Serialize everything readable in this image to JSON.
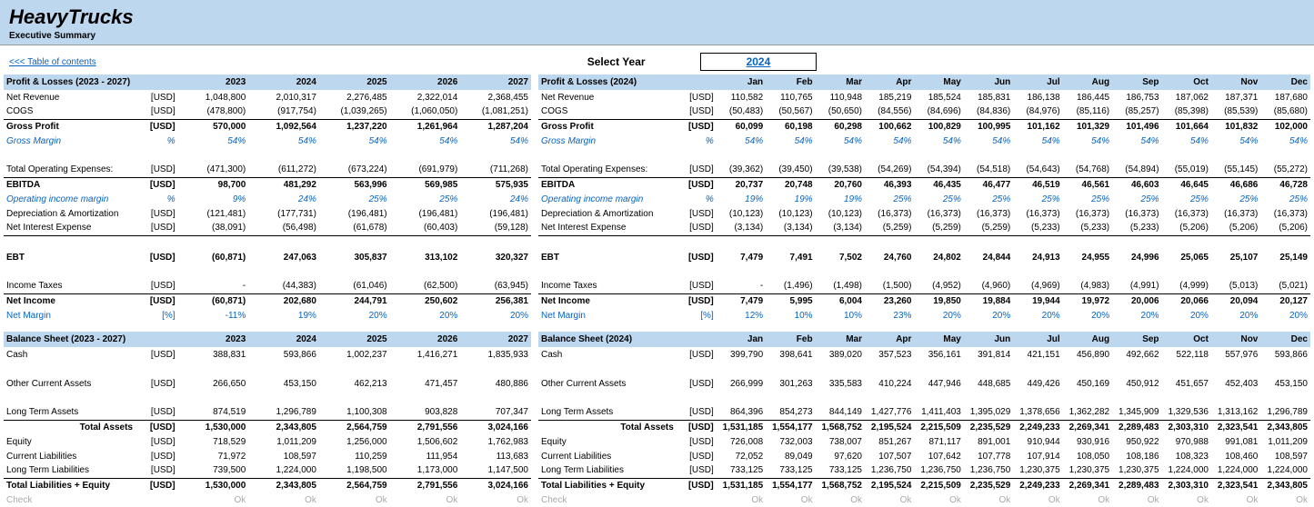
{
  "header": {
    "company": "HeavyTrucks",
    "subtitle": "Executive Summary"
  },
  "nav": {
    "toc": "<<< Table of contents",
    "select_year": "Select Year",
    "year": "2024"
  },
  "left": {
    "pl": {
      "title": "Profit & Losses (2023 - 2027)",
      "cols": [
        "2023",
        "2024",
        "2025",
        "2026",
        "2027"
      ],
      "rows": [
        {
          "l": "Net Revenue",
          "u": "[USD]",
          "v": [
            "1,048,800",
            "2,010,317",
            "2,276,485",
            "2,322,014",
            "2,368,455"
          ]
        },
        {
          "l": "COGS",
          "u": "[USD]",
          "v": [
            "(478,800)",
            "(917,754)",
            "(1,039,265)",
            "(1,060,050)",
            "(1,081,251)"
          ],
          "underline": true
        },
        {
          "l": "Gross Profit",
          "u": "[USD]",
          "v": [
            "570,000",
            "1,092,564",
            "1,237,220",
            "1,261,964",
            "1,287,204"
          ],
          "bold": true
        },
        {
          "l": "Gross Margin",
          "u": "%",
          "v": [
            "54%",
            "54%",
            "54%",
            "54%",
            "54%"
          ],
          "blue": true,
          "italic": true
        },
        {
          "l": "",
          "u": "",
          "v": [
            "",
            "",
            "",
            "",
            ""
          ]
        },
        {
          "l": "Total Operating Expenses:",
          "u": "[USD]",
          "v": [
            "(471,300)",
            "(611,272)",
            "(673,224)",
            "(691,979)",
            "(711,268)"
          ],
          "underline": true
        },
        {
          "l": "EBITDA",
          "u": "[USD]",
          "v": [
            "98,700",
            "481,292",
            "563,996",
            "569,985",
            "575,935"
          ],
          "bold": true
        },
        {
          "l": "Operating income margin",
          "u": "%",
          "v": [
            "9%",
            "24%",
            "25%",
            "25%",
            "24%"
          ],
          "blue": true,
          "italic": true
        },
        {
          "l": "Depreciation & Amortization",
          "u": "[USD]",
          "v": [
            "(121,481)",
            "(177,731)",
            "(196,481)",
            "(196,481)",
            "(196,481)"
          ]
        },
        {
          "l": "Net Interest Expense",
          "u": "[USD]",
          "v": [
            "(38,091)",
            "(56,498)",
            "(61,678)",
            "(60,403)",
            "(59,128)"
          ],
          "underline": true
        },
        {
          "l": "",
          "u": "",
          "v": [
            "",
            "",
            "",
            "",
            ""
          ]
        },
        {
          "l": "EBT",
          "u": "[USD]",
          "v": [
            "(60,871)",
            "247,063",
            "305,837",
            "313,102",
            "320,327"
          ],
          "bold": true
        },
        {
          "l": "",
          "u": "",
          "v": [
            "",
            "",
            "",
            "",
            ""
          ]
        },
        {
          "l": "Income Taxes",
          "u": "[USD]",
          "v": [
            "-",
            "(44,383)",
            "(61,046)",
            "(62,500)",
            "(63,945)"
          ],
          "underline": true
        },
        {
          "l": "Net Income",
          "u": "[USD]",
          "v": [
            "(60,871)",
            "202,680",
            "244,791",
            "250,602",
            "256,381"
          ],
          "bold": true
        },
        {
          "l": "Net Margin",
          "u": "[%]",
          "v": [
            "-11%",
            "19%",
            "20%",
            "20%",
            "20%"
          ],
          "blue": true
        }
      ]
    },
    "bs": {
      "title": "Balance Sheet (2023 - 2027)",
      "cols": [
        "2023",
        "2024",
        "2025",
        "2026",
        "2027"
      ],
      "rows": [
        {
          "l": "Cash",
          "u": "[USD]",
          "v": [
            "388,831",
            "593,866",
            "1,002,237",
            "1,416,271",
            "1,835,933"
          ]
        },
        {
          "l": "",
          "u": "",
          "v": [
            "",
            "",
            "",
            "",
            ""
          ]
        },
        {
          "l": "Other Current Assets",
          "u": "[USD]",
          "v": [
            "266,650",
            "453,150",
            "462,213",
            "471,457",
            "480,886"
          ]
        },
        {
          "l": "",
          "u": "",
          "v": [
            "",
            "",
            "",
            "",
            ""
          ]
        },
        {
          "l": "Long Term Assets",
          "u": "[USD]",
          "v": [
            "874,519",
            "1,296,789",
            "1,100,308",
            "903,828",
            "707,347"
          ],
          "underline": true
        },
        {
          "l": "Total Assets",
          "u": "[USD]",
          "v": [
            "1,530,000",
            "2,343,805",
            "2,564,759",
            "2,791,556",
            "3,024,166"
          ],
          "bold": true,
          "rightlabel": true
        },
        {
          "l": "Equity",
          "u": "[USD]",
          "v": [
            "718,529",
            "1,011,209",
            "1,256,000",
            "1,506,602",
            "1,762,983"
          ]
        },
        {
          "l": "Current Liabilities",
          "u": "[USD]",
          "v": [
            "71,972",
            "108,597",
            "110,259",
            "111,954",
            "113,683"
          ]
        },
        {
          "l": "Long Term Liabilities",
          "u": "[USD]",
          "v": [
            "739,500",
            "1,224,000",
            "1,198,500",
            "1,173,000",
            "1,147,500"
          ],
          "underline": true
        },
        {
          "l": "Total Liabilities + Equity",
          "u": "[USD]",
          "v": [
            "1,530,000",
            "2,343,805",
            "2,564,759",
            "2,791,556",
            "3,024,166"
          ],
          "bold": true
        },
        {
          "l": "Check",
          "u": "",
          "v": [
            "Ok",
            "Ok",
            "Ok",
            "Ok",
            "Ok"
          ],
          "grey": true
        }
      ]
    }
  },
  "right": {
    "pl": {
      "title": "Profit & Losses (2024)",
      "cols": [
        "Jan",
        "Feb",
        "Mar",
        "Apr",
        "May",
        "Jun",
        "Jul",
        "Aug",
        "Sep",
        "Oct",
        "Nov",
        "Dec"
      ],
      "rows": [
        {
          "l": "Net Revenue",
          "u": "[USD]",
          "v": [
            "110,582",
            "110,765",
            "110,948",
            "185,219",
            "185,524",
            "185,831",
            "186,138",
            "186,445",
            "186,753",
            "187,062",
            "187,371",
            "187,680"
          ]
        },
        {
          "l": "COGS",
          "u": "[USD]",
          "v": [
            "(50,483)",
            "(50,567)",
            "(50,650)",
            "(84,556)",
            "(84,696)",
            "(84,836)",
            "(84,976)",
            "(85,116)",
            "(85,257)",
            "(85,398)",
            "(85,539)",
            "(85,680)"
          ],
          "underline": true
        },
        {
          "l": "Gross Profit",
          "u": "[USD]",
          "v": [
            "60,099",
            "60,198",
            "60,298",
            "100,662",
            "100,829",
            "100,995",
            "101,162",
            "101,329",
            "101,496",
            "101,664",
            "101,832",
            "102,000"
          ],
          "bold": true
        },
        {
          "l": "Gross Margin",
          "u": "%",
          "v": [
            "54%",
            "54%",
            "54%",
            "54%",
            "54%",
            "54%",
            "54%",
            "54%",
            "54%",
            "54%",
            "54%",
            "54%"
          ],
          "blue": true,
          "italic": true
        },
        {
          "l": "",
          "u": "",
          "v": [
            "",
            "",
            "",
            "",
            "",
            "",
            "",
            "",
            "",
            "",
            "",
            ""
          ]
        },
        {
          "l": "Total Operating Expenses:",
          "u": "[USD]",
          "v": [
            "(39,362)",
            "(39,450)",
            "(39,538)",
            "(54,269)",
            "(54,394)",
            "(54,518)",
            "(54,643)",
            "(54,768)",
            "(54,894)",
            "(55,019)",
            "(55,145)",
            "(55,272)"
          ],
          "underline": true
        },
        {
          "l": "EBITDA",
          "u": "[USD]",
          "v": [
            "20,737",
            "20,748",
            "20,760",
            "46,393",
            "46,435",
            "46,477",
            "46,519",
            "46,561",
            "46,603",
            "46,645",
            "46,686",
            "46,728"
          ],
          "bold": true
        },
        {
          "l": "Operating income margin",
          "u": "%",
          "v": [
            "19%",
            "19%",
            "19%",
            "25%",
            "25%",
            "25%",
            "25%",
            "25%",
            "25%",
            "25%",
            "25%",
            "25%"
          ],
          "blue": true,
          "italic": true
        },
        {
          "l": "Depreciation & Amortization",
          "u": "[USD]",
          "v": [
            "(10,123)",
            "(10,123)",
            "(10,123)",
            "(16,373)",
            "(16,373)",
            "(16,373)",
            "(16,373)",
            "(16,373)",
            "(16,373)",
            "(16,373)",
            "(16,373)",
            "(16,373)"
          ]
        },
        {
          "l": "Net Interest Expense",
          "u": "[USD]",
          "v": [
            "(3,134)",
            "(3,134)",
            "(3,134)",
            "(5,259)",
            "(5,259)",
            "(5,259)",
            "(5,233)",
            "(5,233)",
            "(5,233)",
            "(5,206)",
            "(5,206)",
            "(5,206)"
          ],
          "underline": true
        },
        {
          "l": "",
          "u": "",
          "v": [
            "",
            "",
            "",
            "",
            "",
            "",
            "",
            "",
            "",
            "",
            "",
            ""
          ]
        },
        {
          "l": "EBT",
          "u": "[USD]",
          "v": [
            "7,479",
            "7,491",
            "7,502",
            "24,760",
            "24,802",
            "24,844",
            "24,913",
            "24,955",
            "24,996",
            "25,065",
            "25,107",
            "25,149"
          ],
          "bold": true
        },
        {
          "l": "",
          "u": "",
          "v": [
            "",
            "",
            "",
            "",
            "",
            "",
            "",
            "",
            "",
            "",
            "",
            ""
          ]
        },
        {
          "l": "Income Taxes",
          "u": "[USD]",
          "v": [
            "-",
            "(1,496)",
            "(1,498)",
            "(1,500)",
            "(4,952)",
            "(4,960)",
            "(4,969)",
            "(4,983)",
            "(4,991)",
            "(4,999)",
            "(5,013)",
            "(5,021)"
          ],
          "underline": true
        },
        {
          "l": "Net Income",
          "u": "[USD]",
          "v": [
            "7,479",
            "5,995",
            "6,004",
            "23,260",
            "19,850",
            "19,884",
            "19,944",
            "19,972",
            "20,006",
            "20,066",
            "20,094",
            "20,127"
          ],
          "bold": true
        },
        {
          "l": "Net Margin",
          "u": "[%]",
          "v": [
            "12%",
            "10%",
            "10%",
            "23%",
            "20%",
            "20%",
            "20%",
            "20%",
            "20%",
            "20%",
            "20%",
            "20%"
          ],
          "blue": true
        }
      ]
    },
    "bs": {
      "title": "Balance Sheet (2024)",
      "cols": [
        "Jan",
        "Feb",
        "Mar",
        "Apr",
        "May",
        "Jun",
        "Jul",
        "Aug",
        "Sep",
        "Oct",
        "Nov",
        "Dec"
      ],
      "rows": [
        {
          "l": "Cash",
          "u": "[USD]",
          "v": [
            "399,790",
            "398,641",
            "389,020",
            "357,523",
            "356,161",
            "391,814",
            "421,151",
            "456,890",
            "492,662",
            "522,118",
            "557,976",
            "593,866"
          ]
        },
        {
          "l": "",
          "u": "",
          "v": [
            "",
            "",
            "",
            "",
            "",
            "",
            "",
            "",
            "",
            "",
            "",
            ""
          ]
        },
        {
          "l": "Other Current Assets",
          "u": "[USD]",
          "v": [
            "266,999",
            "301,263",
            "335,583",
            "410,224",
            "447,946",
            "448,685",
            "449,426",
            "450,169",
            "450,912",
            "451,657",
            "452,403",
            "453,150"
          ]
        },
        {
          "l": "",
          "u": "",
          "v": [
            "",
            "",
            "",
            "",
            "",
            "",
            "",
            "",
            "",
            "",
            "",
            ""
          ]
        },
        {
          "l": "Long Term Assets",
          "u": "[USD]",
          "v": [
            "864,396",
            "854,273",
            "844,149",
            "1,427,776",
            "1,411,403",
            "1,395,029",
            "1,378,656",
            "1,362,282",
            "1,345,909",
            "1,329,536",
            "1,313,162",
            "1,296,789"
          ],
          "underline": true
        },
        {
          "l": "Total Assets",
          "u": "[USD]",
          "v": [
            "1,531,185",
            "1,554,177",
            "1,568,752",
            "2,195,524",
            "2,215,509",
            "2,235,529",
            "2,249,233",
            "2,269,341",
            "2,289,483",
            "2,303,310",
            "2,323,541",
            "2,343,805"
          ],
          "bold": true,
          "rightlabel": true
        },
        {
          "l": "Equity",
          "u": "[USD]",
          "v": [
            "726,008",
            "732,003",
            "738,007",
            "851,267",
            "871,117",
            "891,001",
            "910,944",
            "930,916",
            "950,922",
            "970,988",
            "991,081",
            "1,011,209"
          ]
        },
        {
          "l": "Current Liabilities",
          "u": "[USD]",
          "v": [
            "72,052",
            "89,049",
            "97,620",
            "107,507",
            "107,642",
            "107,778",
            "107,914",
            "108,050",
            "108,186",
            "108,323",
            "108,460",
            "108,597"
          ]
        },
        {
          "l": "Long Term Liabilities",
          "u": "[USD]",
          "v": [
            "733,125",
            "733,125",
            "733,125",
            "1,236,750",
            "1,236,750",
            "1,236,750",
            "1,230,375",
            "1,230,375",
            "1,230,375",
            "1,224,000",
            "1,224,000",
            "1,224,000"
          ],
          "underline": true
        },
        {
          "l": "Total Liabilities + Equity",
          "u": "[USD]",
          "v": [
            "1,531,185",
            "1,554,177",
            "1,568,752",
            "2,195,524",
            "2,215,509",
            "2,235,529",
            "2,249,233",
            "2,269,341",
            "2,289,483",
            "2,303,310",
            "2,323,541",
            "2,343,805"
          ],
          "bold": true
        },
        {
          "l": "Check",
          "u": "",
          "v": [
            "Ok",
            "Ok",
            "Ok",
            "Ok",
            "Ok",
            "Ok",
            "Ok",
            "Ok",
            "Ok",
            "Ok",
            "Ok",
            "Ok"
          ],
          "grey": true
        }
      ]
    }
  }
}
